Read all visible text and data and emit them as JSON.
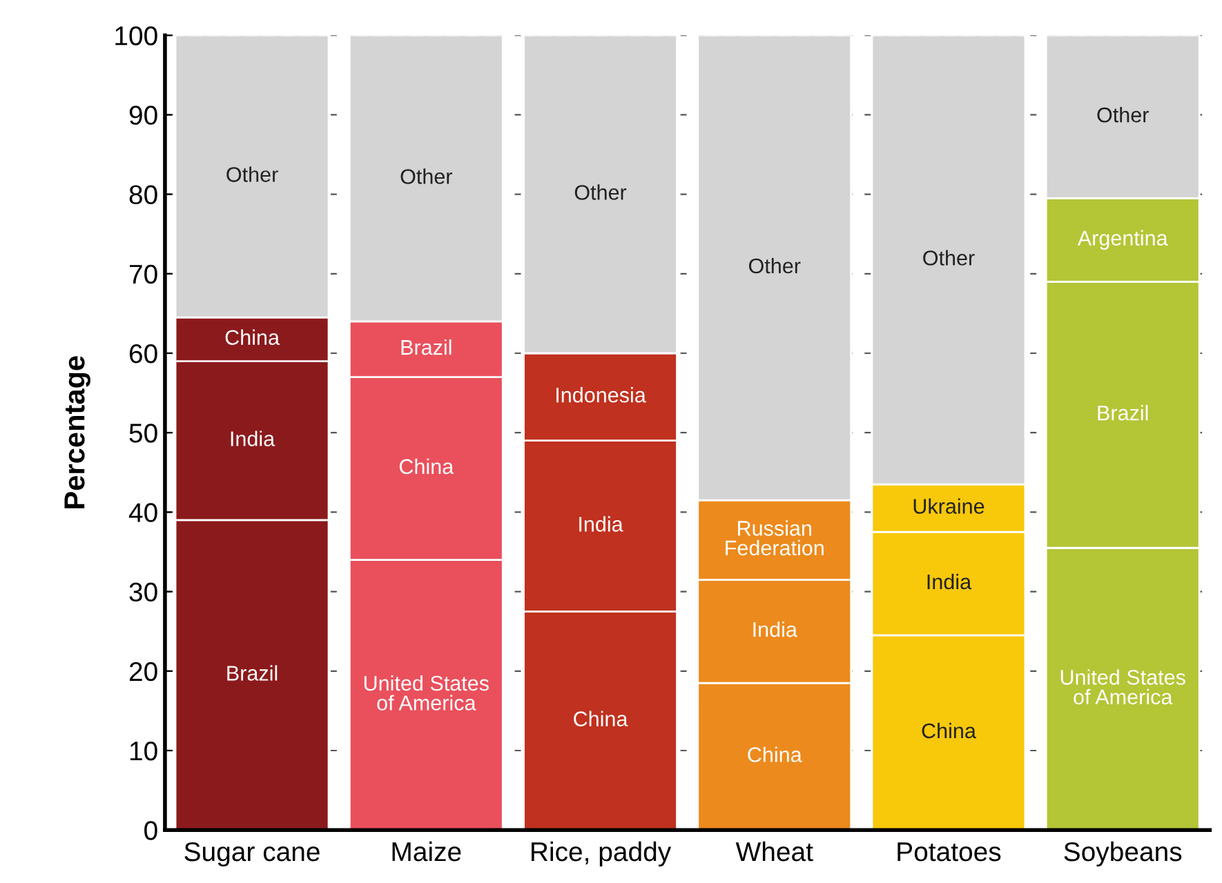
{
  "chart_data": {
    "type": "bar",
    "stacked": true,
    "ylabel": "Percentage",
    "categories": [
      "Sugar cane",
      "Maize",
      "Rice, paddy",
      "Wheat",
      "Potatoes",
      "Soybeans"
    ],
    "series": [
      {
        "colors": [
          "#8b1a1c",
          "#e9505c",
          "#c0311f",
          "#ec8a1d",
          "#f8c80b",
          "#b4c536"
        ],
        "values": [
          39,
          34,
          27.5,
          18.5,
          24.5,
          35.5
        ],
        "value_labels": [
          "Brazil",
          "United States\nof America",
          "China",
          "China",
          "China",
          "United States\nof America"
        ]
      },
      {
        "colors": [
          "#8b1a1c",
          "#e9505c",
          "#c0311f",
          "#ec8a1d",
          "#f8c80b",
          "#b4c536"
        ],
        "values": [
          20,
          23,
          21.5,
          13,
          13,
          33.5
        ],
        "value_labels": [
          "India",
          "China",
          "India",
          "India",
          "India",
          "Brazil"
        ]
      },
      {
        "colors": [
          "#8b1a1c",
          "#e9505c",
          "#c0311f",
          "#ec8a1d",
          "#f8c80b",
          "#b4c536"
        ],
        "values": [
          5.5,
          7,
          11,
          10,
          6,
          10.5
        ],
        "value_labels": [
          "China",
          "Brazil",
          "Indonesia",
          "Russian\nFederation",
          "Ukraine",
          "Argentina"
        ]
      },
      {
        "color": "#d4d4d4",
        "values": [
          35.5,
          36,
          40,
          58.5,
          56.5,
          20.5
        ],
        "value_labels": [
          "Other",
          "Other",
          "Other",
          "Other",
          "Other",
          "Other"
        ]
      }
    ],
    "ylim": [
      0,
      100
    ],
    "yticks": [
      0,
      10,
      20,
      30,
      40,
      50,
      60,
      70,
      80,
      90,
      100
    ],
    "grid": "y",
    "legend": false
  }
}
